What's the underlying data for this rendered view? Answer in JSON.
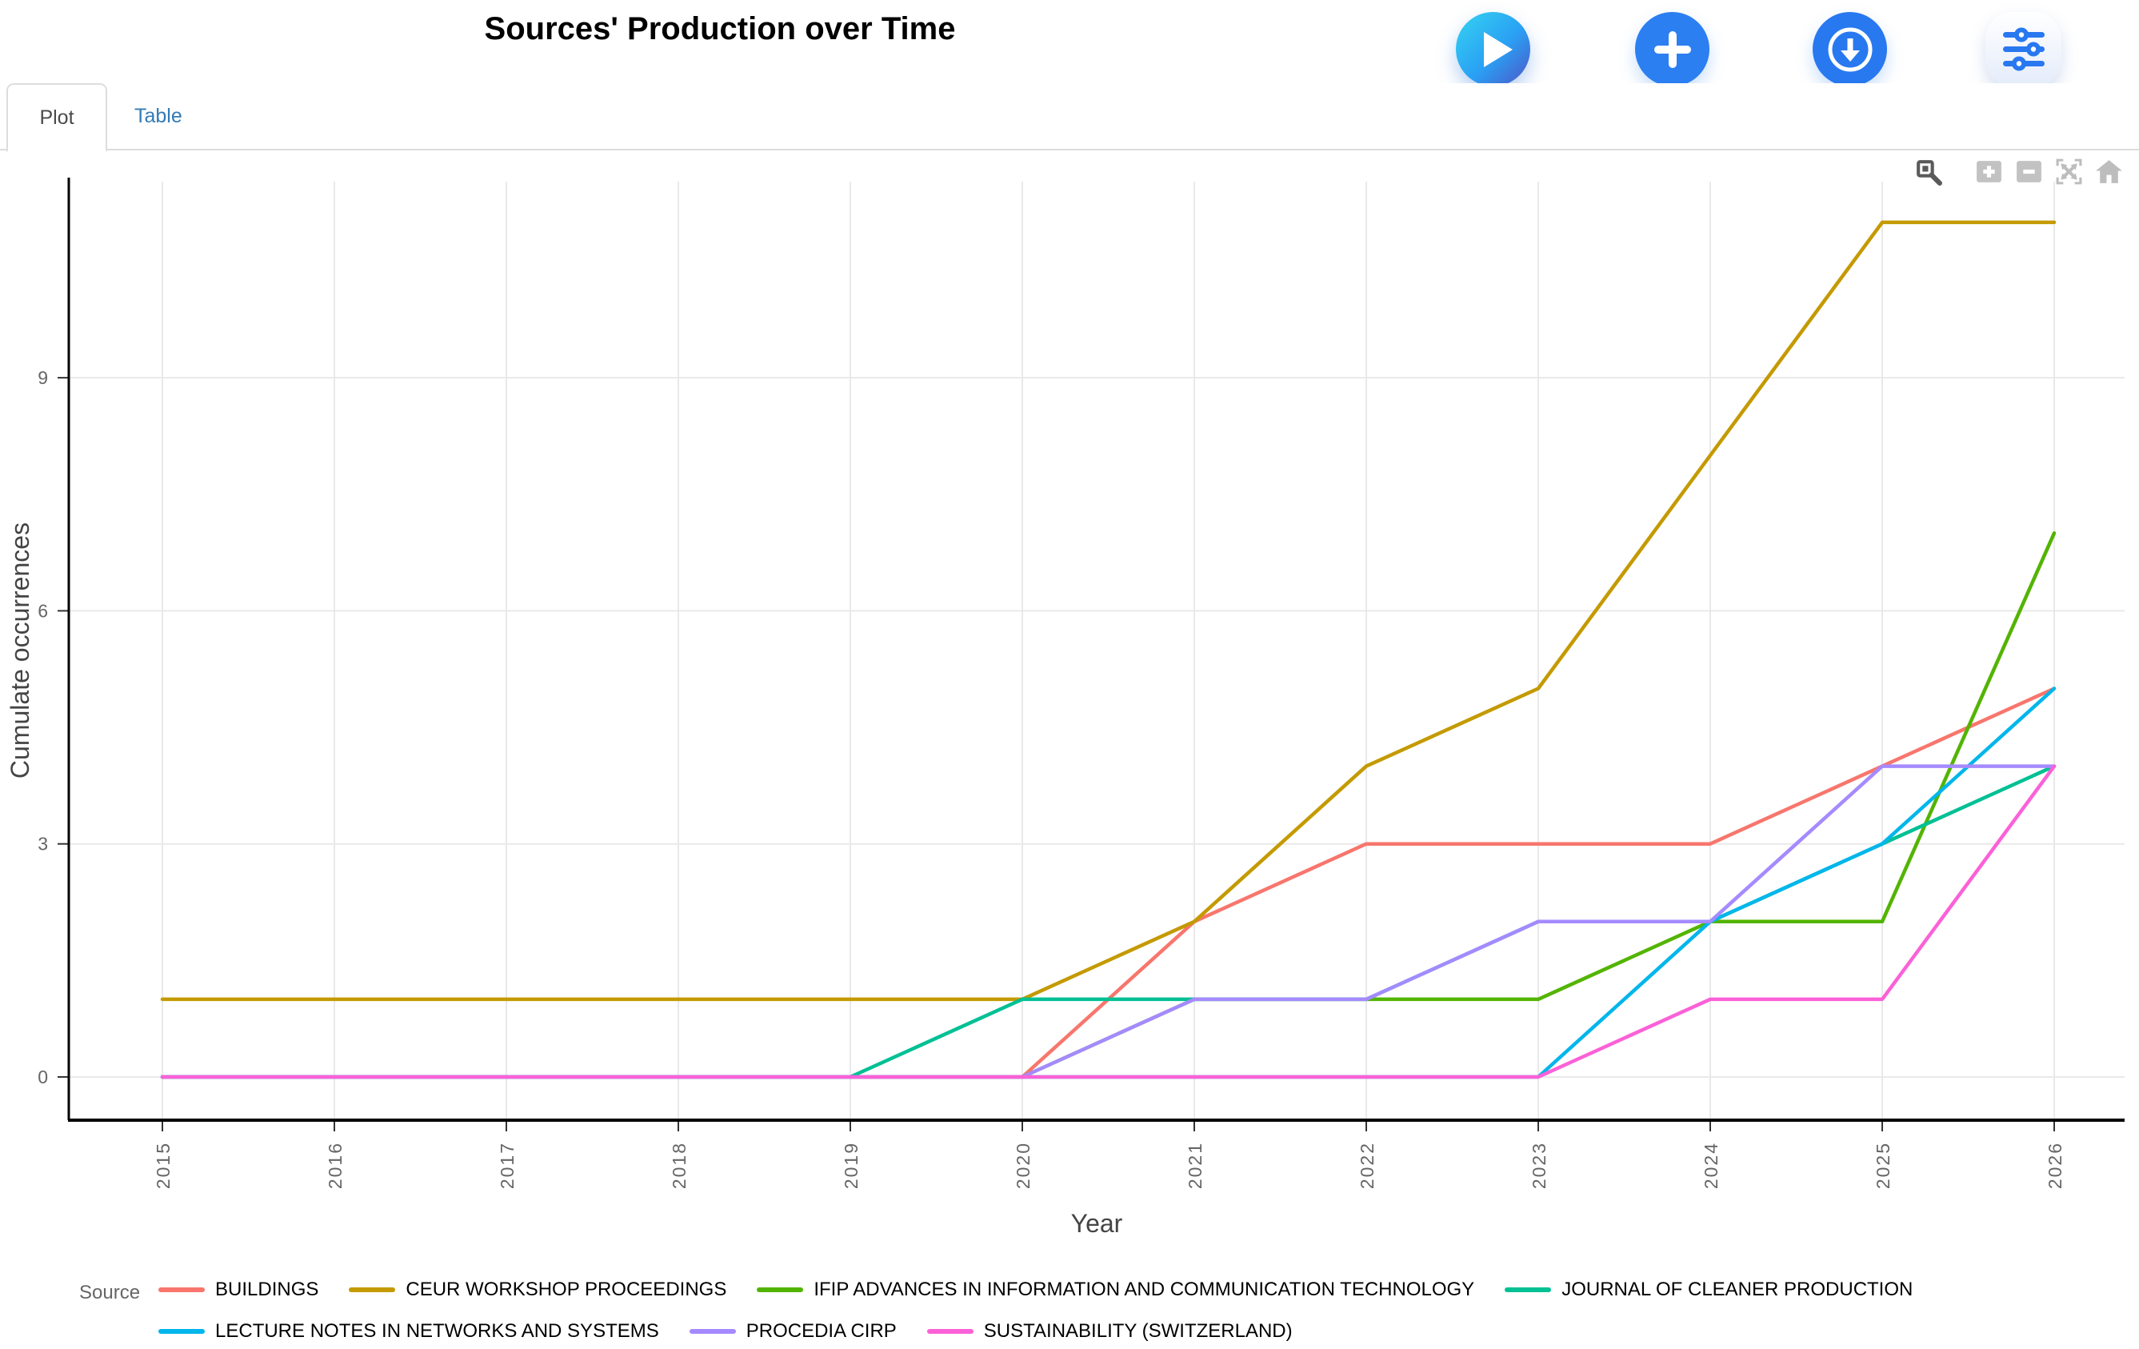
{
  "header": {
    "title": "Sources' Production over Time",
    "buttons": [
      {
        "icon": "play-icon"
      },
      {
        "icon": "plus-icon"
      },
      {
        "icon": "download-icon"
      },
      {
        "icon": "sliders-icon"
      }
    ]
  },
  "tabs": {
    "plot": "Plot",
    "table": "Table"
  },
  "modebar": {
    "icons": [
      "zoom-box-icon",
      "zoom-in-icon",
      "zoom-out-icon",
      "autoscale-icon",
      "home-icon"
    ]
  },
  "colors": {
    "accent_blue": "#2b7ff1",
    "link_blue": "#337ab7",
    "grid": "#e9e9e9",
    "axis_line": "#000000",
    "tick_label": "#666666",
    "axis_title": "#444444",
    "modebar_active": "#5a5a5a",
    "modebar_inactive": "#aeaeae"
  },
  "chart_data": {
    "type": "line",
    "title": "",
    "xlabel": "Year",
    "ylabel": "Cumulate occurrences",
    "legend_title": "Source",
    "legend_position": "bottom",
    "grid": true,
    "x": [
      2015,
      2016,
      2017,
      2018,
      2019,
      2020,
      2021,
      2022,
      2023,
      2024,
      2025,
      2026
    ],
    "yticks": [
      0,
      3,
      6,
      9
    ],
    "ylim": [
      -0.2,
      11.5
    ],
    "series": [
      {
        "name": "BUILDINGS",
        "color": "#F8766D",
        "values": [
          0,
          0,
          0,
          0,
          0,
          0,
          2,
          3,
          3,
          3,
          4,
          5
        ]
      },
      {
        "name": "CEUR WORKSHOP PROCEEDINGS",
        "color": "#C49A00",
        "values": [
          1,
          1,
          1,
          1,
          1,
          1,
          2,
          4,
          5,
          8,
          11,
          11
        ]
      },
      {
        "name": "IFIP ADVANCES IN INFORMATION AND COMMUNICATION TECHNOLOGY",
        "color": "#53B400",
        "values": [
          0,
          0,
          0,
          0,
          0,
          0,
          1,
          1,
          1,
          2,
          2,
          7
        ]
      },
      {
        "name": "JOURNAL OF CLEANER PRODUCTION",
        "color": "#00C094",
        "values": [
          0,
          0,
          0,
          0,
          0,
          1,
          1,
          1,
          2,
          2,
          3,
          4
        ]
      },
      {
        "name": "LECTURE NOTES IN NETWORKS AND SYSTEMS",
        "color": "#00B6EB",
        "values": [
          0,
          0,
          0,
          0,
          0,
          0,
          0,
          0,
          0,
          2,
          3,
          5
        ]
      },
      {
        "name": "PROCEDIA CIRP",
        "color": "#A58AFF",
        "values": [
          0,
          0,
          0,
          0,
          0,
          0,
          1,
          1,
          2,
          2,
          4,
          4
        ]
      },
      {
        "name": "SUSTAINABILITY (SWITZERLAND)",
        "color": "#FB61D7",
        "values": [
          0,
          0,
          0,
          0,
          0,
          0,
          0,
          0,
          0,
          1,
          1,
          4
        ]
      }
    ]
  }
}
